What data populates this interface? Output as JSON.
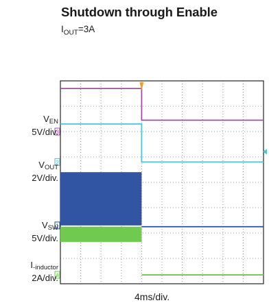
{
  "chart_data": {
    "type": "line",
    "title": "Shutdown through Enable",
    "subtitle": {
      "main": "I",
      "sub": "OUT",
      "rest": "=3A"
    },
    "xlabel": "4ms/div.",
    "grid": true,
    "x_divisions": 10,
    "y_divisions": 8,
    "event_time_div": 4.0,
    "channels": [
      {
        "id": "3",
        "name_main": "V",
        "name_sub": "EN",
        "scale": "5V/div.",
        "color": "#a64ca6",
        "marker_div": 2.0,
        "segments": [
          {
            "from_div": 0.0,
            "to_div": 4.0,
            "level_div": 0.3
          },
          {
            "from_div": 4.0,
            "to_div": 10.0,
            "level_div": 1.55
          }
        ]
      },
      {
        "id": "2",
        "name_main": "V",
        "name_sub": "OUT",
        "scale": "2V/div.",
        "color": "#4cc3d6",
        "marker_div": 3.2,
        "segments": [
          {
            "from_div": 0.0,
            "to_div": 4.0,
            "level_div": 1.7
          },
          {
            "from_div": 4.0,
            "to_div": 10.0,
            "level_div": 3.2
          }
        ]
      },
      {
        "id": "1",
        "name_main": "V",
        "name_sub": "SW",
        "scale": "5V/div.",
        "color": "#2a4fa0",
        "marker_div": 5.7,
        "switching": {
          "from_div": 0.0,
          "to_div": 4.0,
          "low_div": 5.7,
          "high_div": 3.6
        },
        "segments": [
          {
            "from_div": 4.0,
            "to_div": 10.0,
            "level_div": 5.75
          }
        ]
      },
      {
        "id": "4",
        "name_main": "I",
        "name_sub": "-inductor",
        "scale": "2A/div.",
        "color": "#6cc84a",
        "marker_div": 7.65,
        "switching": {
          "from_div": 0.0,
          "to_div": 4.0,
          "low_div": 6.35,
          "high_div": 5.75
        },
        "segments": [
          {
            "from_div": 4.0,
            "to_div": 10.0,
            "level_div": 7.65
          }
        ]
      }
    ]
  }
}
